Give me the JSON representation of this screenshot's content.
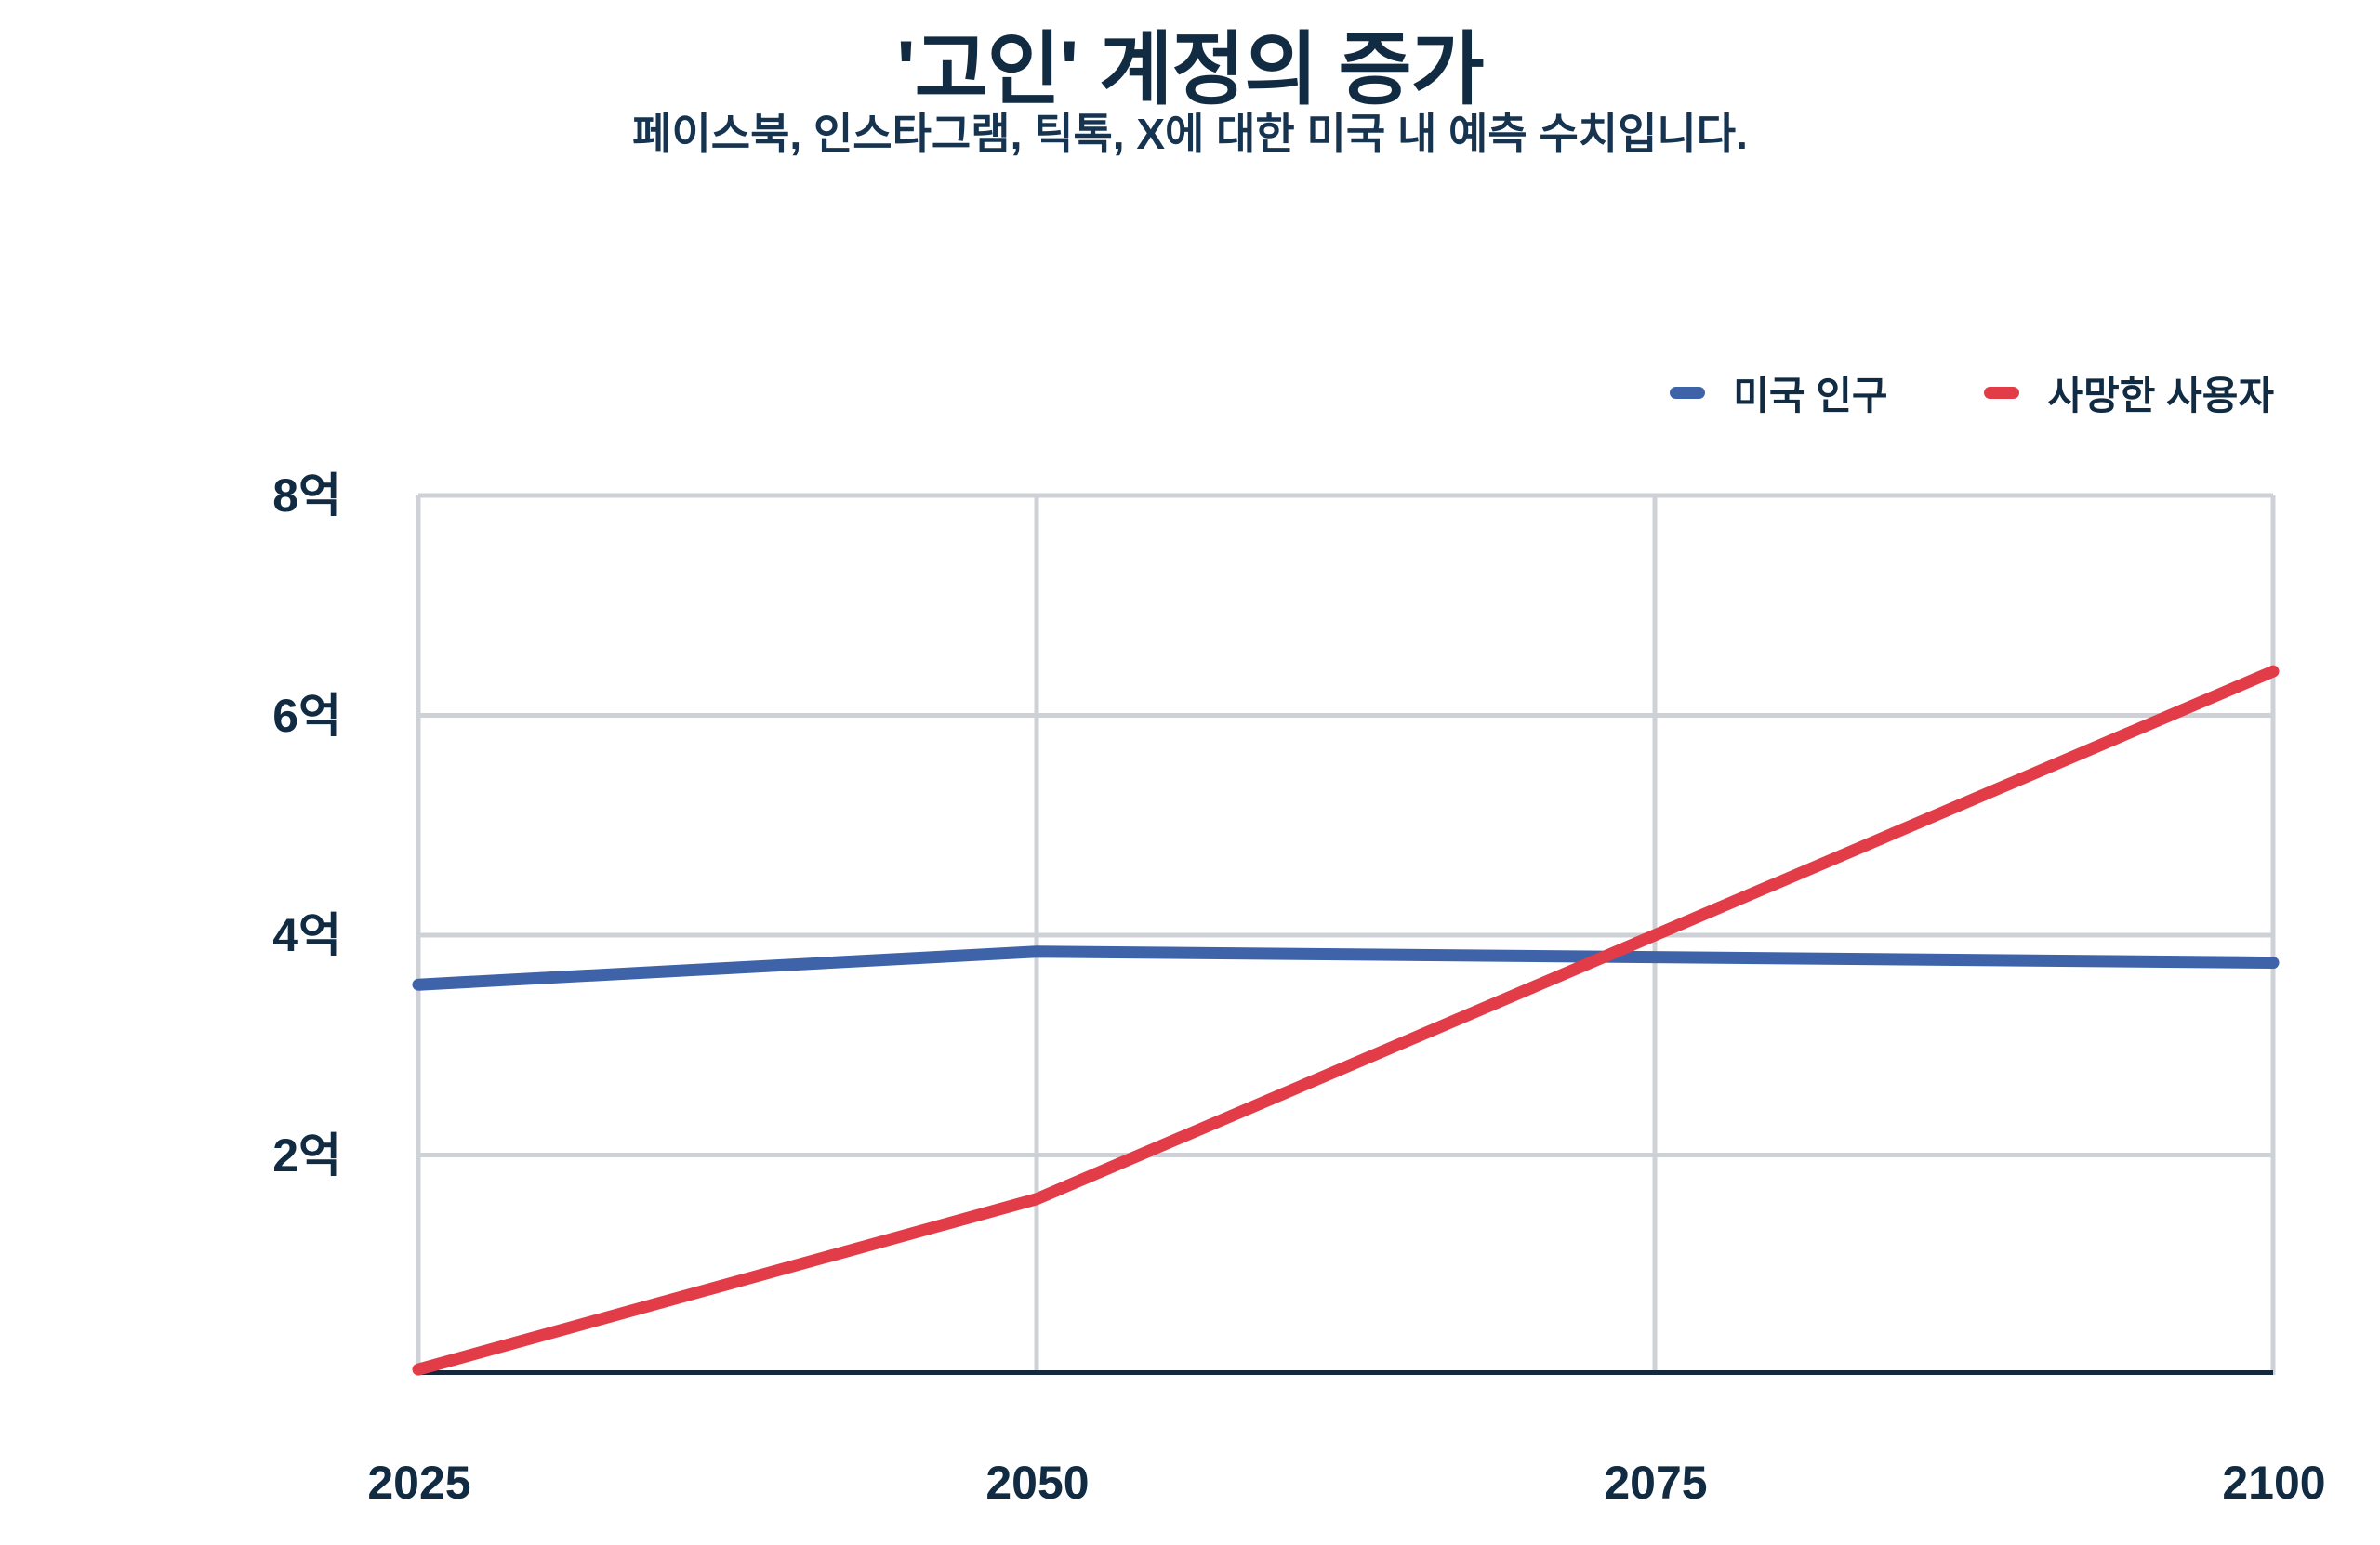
{
  "chart_data": {
    "type": "line",
    "title": "'고인' 계정의 증가",
    "subtitle": "페이스북, 인스타그램, 틱톡, X에 대한 미국 내 예측 수치입니다.",
    "x": [
      2025,
      2050,
      2075,
      2100
    ],
    "xtick_labels": [
      "2025",
      "2050",
      "2075",
      "2100"
    ],
    "ylim": [
      0,
      8
    ],
    "y_unit": "억",
    "ytick_values": [
      8,
      6,
      4,
      2
    ],
    "ytick_labels": [
      "8억",
      "6억",
      "4억",
      "2억"
    ],
    "grid": true,
    "legend_position": "top-right",
    "series": [
      {
        "name": "미국 인구",
        "color": "#3e63a8",
        "values": [
          3.55,
          3.85,
          3.8,
          3.75
        ]
      },
      {
        "name": "사망한 사용자",
        "color": "#e23c48",
        "values": [
          0.05,
          1.6,
          4.0,
          6.4
        ]
      }
    ]
  },
  "colors": {
    "background": "#ffffff",
    "text_navy": "#112b42",
    "subtitle_navy": "#16334f",
    "grid_gray": "#ced2d7",
    "axis_navy": "#15293c",
    "series_blue": "#3e63a8",
    "series_red": "#e23c48"
  }
}
